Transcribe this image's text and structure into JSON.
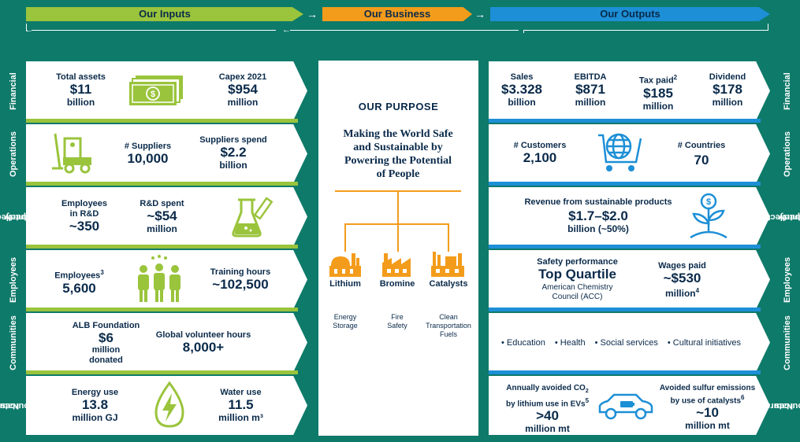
{
  "header": {
    "inputs": "Our Inputs",
    "business": "Our Business",
    "outputs": "Our Outputs",
    "arrow1": "→",
    "arrow2": "→",
    "back1": "←",
    "back2": "←"
  },
  "side_labels": {
    "financial": "Financial",
    "operations": "Operations",
    "intellectual_1": "Intellectual",
    "intellectual_2": "Property",
    "employees": "Employees",
    "communities": "Communities",
    "natural_1": "Natural",
    "natural_2": "Resources"
  },
  "inputs": {
    "financial": {
      "total_assets_label": "Total assets",
      "total_assets_value": "$11",
      "total_assets_unit": "billion",
      "capex_label": "Capex 2021",
      "capex_value": "$954",
      "capex_unit": "million"
    },
    "operations": {
      "suppliers_label": "# Suppliers",
      "suppliers_value": "10,000",
      "spend_label": "Suppliers spend",
      "spend_value": "$2.2",
      "spend_unit": "billion"
    },
    "intellectual": {
      "employees_label_1": "Employees",
      "employees_label_2": "in R&D",
      "employees_value": "~350",
      "rd_label": "R&D spent",
      "rd_value": "~$54",
      "rd_unit": "million"
    },
    "employees": {
      "employees_label": "Employees",
      "employees_sup": "3",
      "employees_value": "5,600",
      "training_label": "Training hours",
      "training_value": "~102,500"
    },
    "communities": {
      "foundation_label": "ALB Foundation",
      "foundation_value": "$6",
      "foundation_unit_1": "million",
      "foundation_unit_2": "donated",
      "volunteer_label": "Global volunteer hours",
      "volunteer_value": "8,000+"
    },
    "natural": {
      "energy_label": "Energy use",
      "energy_value": "13.8",
      "energy_unit": "million GJ",
      "water_label": "Water use",
      "water_value": "11.5",
      "water_unit": "million m³"
    }
  },
  "business": {
    "purpose_title": "OUR PURPOSE",
    "purpose_1": "Making the World Safe",
    "purpose_2": "and Sustainable by",
    "purpose_3": "Powering the Potential",
    "purpose_4": "of People",
    "units": [
      {
        "name": "Lithium",
        "use_1": "Energy",
        "use_2": "Storage",
        "use_3": ""
      },
      {
        "name": "Bromine",
        "use_1": "Fire",
        "use_2": "Safety",
        "use_3": ""
      },
      {
        "name": "Catalysts",
        "use_1": "Clean",
        "use_2": "Transportation",
        "use_3": "Fuels"
      }
    ]
  },
  "outputs": {
    "financial": {
      "sales_label": "Sales",
      "sales_value": "$3.328",
      "sales_unit": "billion",
      "ebitda_label": "EBITDA",
      "ebitda_value": "$871",
      "ebitda_unit": "million",
      "tax_label": "Tax paid",
      "tax_sup": "2",
      "tax_value": "$185",
      "tax_unit": "million",
      "dividend_label": "Dividend",
      "dividend_value": "$178",
      "dividend_unit": "million"
    },
    "operations": {
      "customers_label": "# Customers",
      "customers_value": "2,100",
      "countries_label": "# Countries",
      "countries_value": "70"
    },
    "intellectual": {
      "revenue_label": "Revenue from sustainable products",
      "revenue_value": "$1.7–$2.0",
      "revenue_unit": "billion (~50%)"
    },
    "employees": {
      "safety_label": "Safety performance",
      "safety_value": "Top Quartile",
      "safety_note_1": "American Chemistry",
      "safety_note_2": "Council (ACC)",
      "wages_label": "Wages paid",
      "wages_value": "~$530",
      "wages_unit": "million",
      "wages_sup": "4"
    },
    "communities": {
      "items": [
        "Education",
        "Health",
        "Social services",
        "Cultural initiatives"
      ]
    },
    "natural": {
      "co2_label_1": "Annually avoided CO",
      "co2_label_1_sub": "2",
      "co2_label_2": "by lithium use in EVs",
      "co2_sup": "5",
      "co2_value": ">40",
      "co2_unit": "million mt",
      "sulfur_label_1": "Avoided sulfur emissions",
      "sulfur_label_2": "by use of catalysts",
      "sulfur_sup": "6",
      "sulfur_value": "~10",
      "sulfur_unit": "million mt"
    }
  },
  "colors": {
    "background": "#0e7a6a",
    "inputs": "#9ac43c",
    "business": "#f39c1b",
    "outputs": "#1d8fd6",
    "text": "#0a2a4a"
  }
}
